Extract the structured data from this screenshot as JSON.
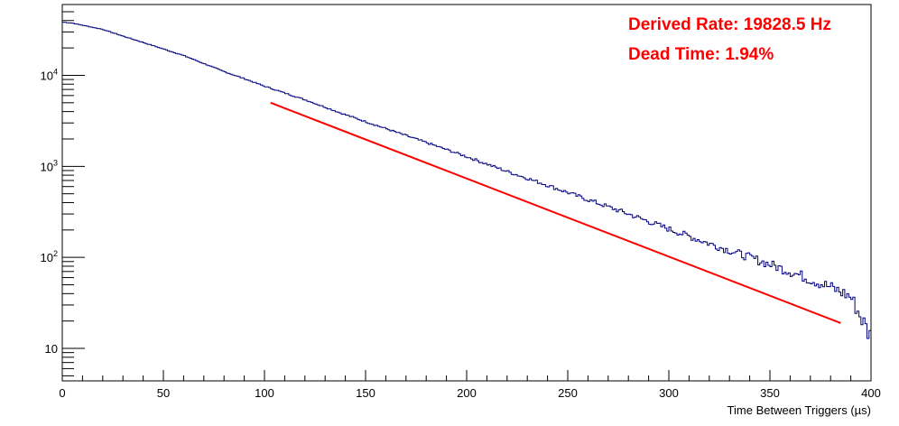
{
  "chart_data": {
    "type": "line",
    "title": "",
    "xlabel": "Time Between Triggers (µs)",
    "ylabel": "",
    "xlim": [
      0,
      400
    ],
    "ylim": [
      4.4,
      60000
    ],
    "y_scale": "log",
    "grid": false,
    "legend": "none",
    "x_ticks": [
      0,
      50,
      100,
      150,
      200,
      250,
      300,
      350,
      400
    ],
    "y_ticks": [
      {
        "value": 10,
        "label": "10"
      },
      {
        "value": 100,
        "label": "10",
        "exp": "2"
      },
      {
        "value": 1000,
        "label": "10",
        "exp": "3"
      },
      {
        "value": 10000,
        "label": "10",
        "exp": "4"
      }
    ],
    "series": [
      {
        "kind": "histogram",
        "color": "#00007f",
        "x": [
          0,
          5,
          10,
          20,
          30,
          40,
          50,
          60,
          70,
          80,
          90,
          100,
          120,
          140,
          160,
          180,
          200,
          220,
          240,
          260,
          280,
          300,
          320,
          340,
          360,
          380,
          390,
          400
        ],
        "values": [
          38500,
          37500,
          35500,
          32000,
          27000,
          23000,
          19500,
          16500,
          13500,
          11000,
          9200,
          7600,
          5400,
          3700,
          2600,
          1830,
          1280,
          880,
          620,
          430,
          300,
          205,
          142,
          100,
          70,
          47,
          37,
          13
        ]
      },
      {
        "kind": "fit",
        "color": "#ff0000",
        "x": [
          103,
          385
        ],
        "values": [
          5000,
          19
        ]
      }
    ],
    "annotations": [
      {
        "text": "Derived Rate: 19828.5 Hz",
        "color": "#ff0000"
      },
      {
        "text": "Dead Time: 1.94%",
        "color": "#ff0000"
      }
    ]
  }
}
